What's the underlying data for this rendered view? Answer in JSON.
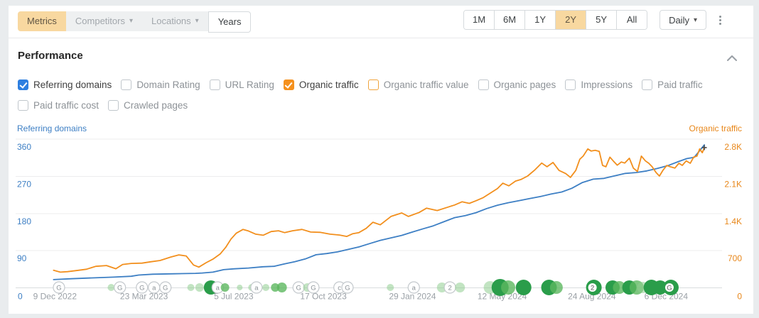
{
  "toolbar": {
    "view_tabs": [
      {
        "label": "Metrics",
        "variant": "active"
      },
      {
        "label": "Competitors",
        "variant": "muted",
        "caret": true
      },
      {
        "label": "Locations",
        "variant": "muted",
        "caret": true
      },
      {
        "label": "Years",
        "variant": "outline"
      }
    ],
    "ranges": [
      "1M",
      "6M",
      "1Y",
      "2Y",
      "5Y",
      "All"
    ],
    "active_range": "2Y",
    "granularity": {
      "label": "Daily",
      "caret": "▾"
    }
  },
  "performance": {
    "title": "Performance",
    "metrics_row1": [
      {
        "label": "Referring domains",
        "checked": true,
        "accent": "blue"
      },
      {
        "label": "Domain Rating",
        "checked": false
      },
      {
        "label": "URL Rating",
        "checked": false
      },
      {
        "label": "Organic traffic",
        "checked": true,
        "accent": "orange"
      },
      {
        "label": "Organic traffic value",
        "checked": false,
        "accent": "orange-border"
      },
      {
        "label": "Organic pages",
        "checked": false
      },
      {
        "label": "Impressions",
        "checked": false
      },
      {
        "label": "Paid traffic",
        "checked": false
      }
    ],
    "metrics_row2": [
      {
        "label": "Paid traffic cost",
        "checked": false
      },
      {
        "label": "Crawled pages",
        "checked": false
      }
    ]
  },
  "colors": {
    "referring_domains_blue": "#3d7fc4",
    "organic_traffic_orange": "#f28f1d",
    "right_axis_orange": "#e8871a",
    "active_pill": "#f8d8a0",
    "event_light_green": "#8fce90",
    "event_medium_green": "#5cb85f",
    "event_dark_green": "#2a9d4a",
    "grid": "#ededee",
    "axis_line": "#d9dcde",
    "muted_text": "#9aa0a6"
  },
  "chart_data": {
    "type": "line",
    "left_axis": {
      "title": "Referring domains",
      "color": "#3d7fc4",
      "ticks": [
        90,
        180,
        270,
        360
      ],
      "zero_label": "0",
      "max": 360
    },
    "right_axis": {
      "title": "Organic traffic",
      "color": "#e8871a",
      "tick_labels": [
        "700",
        "1.4K",
        "2.1K",
        "2.8K"
      ],
      "tick_values": [
        700,
        1400,
        2100,
        2800
      ],
      "zero_label": "0",
      "max": 2800
    },
    "x_axis": {
      "dates": [
        "9 Dec 2022",
        "23 Mar 2023",
        "5 Jul 2023",
        "17 Oct 2023",
        "29 Jan 2024",
        "12 May 2024",
        "24 Aug 2024",
        "6 Dec 2024"
      ],
      "positions": [
        0.029,
        0.162,
        0.296,
        0.43,
        0.563,
        0.697,
        0.831,
        0.942
      ]
    },
    "series": [
      {
        "name": "Referring domains",
        "axis": "left",
        "color": "#3d7fc4",
        "points": [
          [
            0.027,
            20
          ],
          [
            0.053,
            22
          ],
          [
            0.085,
            24
          ],
          [
            0.117,
            26
          ],
          [
            0.143,
            28
          ],
          [
            0.154,
            31
          ],
          [
            0.175,
            33
          ],
          [
            0.207,
            34
          ],
          [
            0.239,
            35
          ],
          [
            0.249,
            36
          ],
          [
            0.265,
            38
          ],
          [
            0.281,
            44
          ],
          [
            0.297,
            46
          ],
          [
            0.318,
            48
          ],
          [
            0.34,
            51
          ],
          [
            0.356,
            52
          ],
          [
            0.372,
            58
          ],
          [
            0.387,
            63
          ],
          [
            0.403,
            70
          ],
          [
            0.419,
            80
          ],
          [
            0.435,
            83
          ],
          [
            0.451,
            87
          ],
          [
            0.467,
            93
          ],
          [
            0.483,
            99
          ],
          [
            0.499,
            107
          ],
          [
            0.515,
            115
          ],
          [
            0.531,
            121
          ],
          [
            0.547,
            127
          ],
          [
            0.563,
            135
          ],
          [
            0.579,
            143
          ],
          [
            0.594,
            150
          ],
          [
            0.61,
            160
          ],
          [
            0.626,
            170
          ],
          [
            0.642,
            175
          ],
          [
            0.658,
            182
          ],
          [
            0.674,
            192
          ],
          [
            0.69,
            200
          ],
          [
            0.706,
            206
          ],
          [
            0.722,
            211
          ],
          [
            0.738,
            216
          ],
          [
            0.754,
            221
          ],
          [
            0.77,
            227
          ],
          [
            0.786,
            232
          ],
          [
            0.801,
            241
          ],
          [
            0.817,
            255
          ],
          [
            0.833,
            263
          ],
          [
            0.849,
            265
          ],
          [
            0.865,
            271
          ],
          [
            0.881,
            277
          ],
          [
            0.897,
            279
          ],
          [
            0.913,
            283
          ],
          [
            0.929,
            289
          ],
          [
            0.945,
            296
          ],
          [
            0.961,
            306
          ],
          [
            0.973,
            313
          ],
          [
            0.984,
            316
          ],
          [
            0.991,
            330
          ],
          [
            0.999,
            346
          ]
        ]
      },
      {
        "name": "Organic traffic",
        "axis": "right",
        "color": "#f28f1d",
        "points": [
          [
            0.027,
            330
          ],
          [
            0.037,
            295
          ],
          [
            0.048,
            305
          ],
          [
            0.064,
            330
          ],
          [
            0.076,
            350
          ],
          [
            0.09,
            405
          ],
          [
            0.106,
            420
          ],
          [
            0.12,
            360
          ],
          [
            0.13,
            440
          ],
          [
            0.143,
            460
          ],
          [
            0.159,
            465
          ],
          [
            0.172,
            490
          ],
          [
            0.186,
            515
          ],
          [
            0.202,
            580
          ],
          [
            0.214,
            620
          ],
          [
            0.225,
            600
          ],
          [
            0.236,
            430
          ],
          [
            0.244,
            390
          ],
          [
            0.255,
            475
          ],
          [
            0.265,
            540
          ],
          [
            0.276,
            640
          ],
          [
            0.284,
            760
          ],
          [
            0.292,
            920
          ],
          [
            0.3,
            1030
          ],
          [
            0.31,
            1100
          ],
          [
            0.318,
            1070
          ],
          [
            0.329,
            1010
          ],
          [
            0.34,
            990
          ],
          [
            0.352,
            1060
          ],
          [
            0.363,
            1075
          ],
          [
            0.372,
            1040
          ],
          [
            0.384,
            1075
          ],
          [
            0.398,
            1100
          ],
          [
            0.411,
            1050
          ],
          [
            0.425,
            1045
          ],
          [
            0.44,
            1010
          ],
          [
            0.454,
            995
          ],
          [
            0.465,
            968
          ],
          [
            0.474,
            1020
          ],
          [
            0.483,
            1040
          ],
          [
            0.494,
            1120
          ],
          [
            0.504,
            1235
          ],
          [
            0.515,
            1187
          ],
          [
            0.531,
            1345
          ],
          [
            0.547,
            1410
          ],
          [
            0.557,
            1345
          ],
          [
            0.573,
            1420
          ],
          [
            0.584,
            1500
          ],
          [
            0.6,
            1455
          ],
          [
            0.616,
            1520
          ],
          [
            0.626,
            1560
          ],
          [
            0.637,
            1620
          ],
          [
            0.648,
            1590
          ],
          [
            0.658,
            1640
          ],
          [
            0.669,
            1700
          ],
          [
            0.679,
            1780
          ],
          [
            0.69,
            1870
          ],
          [
            0.698,
            1970
          ],
          [
            0.707,
            1920
          ],
          [
            0.717,
            2010
          ],
          [
            0.725,
            2040
          ],
          [
            0.735,
            2105
          ],
          [
            0.745,
            2210
          ],
          [
            0.756,
            2350
          ],
          [
            0.764,
            2280
          ],
          [
            0.773,
            2360
          ],
          [
            0.782,
            2210
          ],
          [
            0.792,
            2150
          ],
          [
            0.799,
            2080
          ],
          [
            0.807,
            2210
          ],
          [
            0.813,
            2420
          ],
          [
            0.818,
            2480
          ],
          [
            0.825,
            2615
          ],
          [
            0.83,
            2575
          ],
          [
            0.836,
            2590
          ],
          [
            0.842,
            2570
          ],
          [
            0.847,
            2305
          ],
          [
            0.852,
            2280
          ],
          [
            0.858,
            2460
          ],
          [
            0.863,
            2390
          ],
          [
            0.869,
            2310
          ],
          [
            0.875,
            2370
          ],
          [
            0.88,
            2350
          ],
          [
            0.887,
            2440
          ],
          [
            0.893,
            2255
          ],
          [
            0.899,
            2190
          ],
          [
            0.905,
            2480
          ],
          [
            0.911,
            2390
          ],
          [
            0.916,
            2345
          ],
          [
            0.921,
            2280
          ],
          [
            0.927,
            2170
          ],
          [
            0.932,
            2105
          ],
          [
            0.937,
            2210
          ],
          [
            0.943,
            2305
          ],
          [
            0.948,
            2280
          ],
          [
            0.955,
            2255
          ],
          [
            0.961,
            2345
          ],
          [
            0.966,
            2305
          ],
          [
            0.972,
            2390
          ],
          [
            0.978,
            2345
          ],
          [
            0.983,
            2460
          ],
          [
            0.988,
            2480
          ],
          [
            0.992,
            2615
          ],
          [
            0.996,
            2545
          ],
          [
            0.999,
            2640
          ]
        ]
      }
    ],
    "events": [
      {
        "x": 0.035,
        "r": 8,
        "t": "outline",
        "l": "G"
      },
      {
        "x": 0.113,
        "r": 5,
        "t": "light"
      },
      {
        "x": 0.126,
        "r": 8,
        "t": "outline",
        "l": "G"
      },
      {
        "x": 0.159,
        "r": 8,
        "t": "outline",
        "l": "G"
      },
      {
        "x": 0.177,
        "r": 8,
        "t": "outline",
        "l": "a"
      },
      {
        "x": 0.194,
        "r": 8,
        "t": "outline",
        "l": "G"
      },
      {
        "x": 0.232,
        "r": 5,
        "t": "light"
      },
      {
        "x": 0.245,
        "r": 6,
        "t": "light"
      },
      {
        "x": 0.262,
        "r": 10,
        "t": "dark"
      },
      {
        "x": 0.272,
        "r": 8,
        "t": "outline",
        "l": "a"
      },
      {
        "x": 0.283,
        "r": 6,
        "t": "medium"
      },
      {
        "x": 0.305,
        "r": 4,
        "t": "light"
      },
      {
        "x": 0.323,
        "r": 5,
        "t": "light"
      },
      {
        "x": 0.33,
        "r": 8,
        "t": "outline",
        "l": "a"
      },
      {
        "x": 0.344,
        "r": 5,
        "t": "light"
      },
      {
        "x": 0.358,
        "r": 6,
        "t": "medium"
      },
      {
        "x": 0.368,
        "r": 7,
        "t": "medium"
      },
      {
        "x": 0.393,
        "r": 8,
        "t": "outline",
        "l": "G"
      },
      {
        "x": 0.406,
        "r": 6,
        "t": "light"
      },
      {
        "x": 0.415,
        "r": 8,
        "t": "outline",
        "l": "G"
      },
      {
        "x": 0.454,
        "r": 8,
        "t": "outline",
        "l": "c"
      },
      {
        "x": 0.466,
        "r": 8,
        "t": "outline",
        "l": "G"
      },
      {
        "x": 0.53,
        "r": 5,
        "t": "light"
      },
      {
        "x": 0.565,
        "r": 8,
        "t": "outline",
        "l": "a"
      },
      {
        "x": 0.607,
        "r": 7,
        "t": "light"
      },
      {
        "x": 0.619,
        "r": 8,
        "t": "outline",
        "l": "2"
      },
      {
        "x": 0.634,
        "r": 7,
        "t": "light"
      },
      {
        "x": 0.679,
        "r": 9,
        "t": "light"
      },
      {
        "x": 0.694,
        "r": 12,
        "t": "dark"
      },
      {
        "x": 0.706,
        "r": 10,
        "t": "medium"
      },
      {
        "x": 0.729,
        "r": 11,
        "t": "dark"
      },
      {
        "x": 0.767,
        "r": 11,
        "t": "dark"
      },
      {
        "x": 0.778,
        "r": 9,
        "t": "medium"
      },
      {
        "x": 0.834,
        "r": 11,
        "t": "dark",
        "l": "2"
      },
      {
        "x": 0.862,
        "r": 10,
        "t": "dark"
      },
      {
        "x": 0.872,
        "r": 9,
        "t": "medium"
      },
      {
        "x": 0.887,
        "r": 10,
        "t": "dark"
      },
      {
        "x": 0.898,
        "r": 10,
        "t": "medium"
      },
      {
        "x": 0.907,
        "r": 8,
        "t": "light"
      },
      {
        "x": 0.92,
        "r": 11,
        "t": "dark"
      },
      {
        "x": 0.933,
        "r": 10,
        "t": "dark"
      },
      {
        "x": 0.949,
        "r": 11,
        "t": "dark",
        "l": "G"
      }
    ]
  }
}
